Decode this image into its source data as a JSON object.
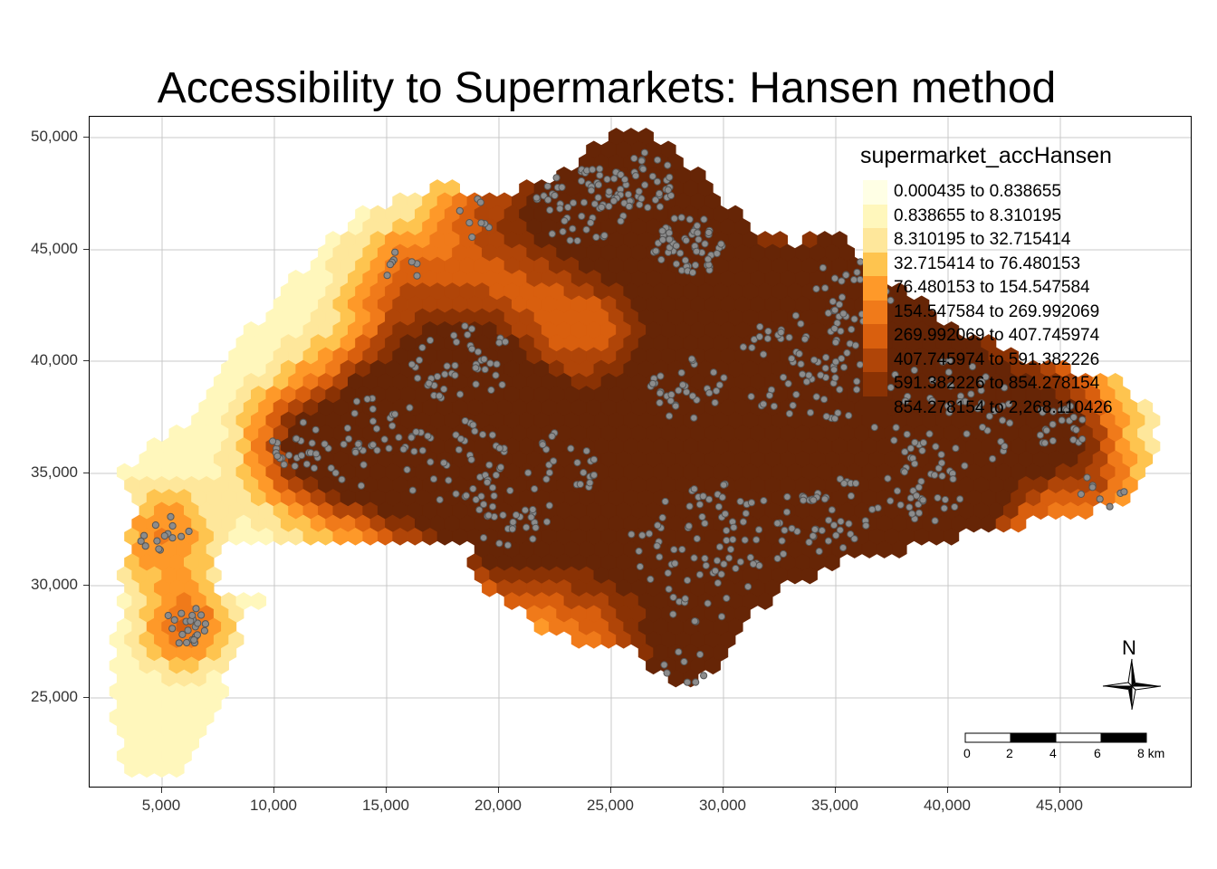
{
  "title": "Accessibility to Supermarkets: Hansen method",
  "legend": {
    "title": "supermarket_accHansen",
    "classes": [
      {
        "label": "0.000435 to 0.838655",
        "color": "#ffffe5"
      },
      {
        "label": "0.838655 to 8.310195",
        "color": "#fff7bc"
      },
      {
        "label": "8.310195 to 32.715414",
        "color": "#fee79b"
      },
      {
        "label": "32.715414 to 76.480153",
        "color": "#fec44f"
      },
      {
        "label": "76.480153 to 154.547584",
        "color": "#fe9929"
      },
      {
        "label": "154.547584 to 269.992069",
        "color": "#f07a1a"
      },
      {
        "label": "269.992069 to 407.745974",
        "color": "#d95f0e"
      },
      {
        "label": "407.745974 to 591.382226",
        "color": "#b04508"
      },
      {
        "label": "591.382226 to 854.278154",
        "color": "#8a3204"
      },
      {
        "label": "854.278154 to 2,268.110426",
        "color": "#662506"
      }
    ]
  },
  "axes": {
    "x_ticks": [
      "5,000",
      "10,000",
      "15,000",
      "20,000",
      "25,000",
      "30,000",
      "35,000",
      "40,000",
      "45,000"
    ],
    "y_ticks": [
      "50,000",
      "45,000",
      "40,000",
      "35,000",
      "30,000",
      "25,000"
    ]
  },
  "north_arrow": {
    "label": "N",
    "icon": "compass-rose-icon"
  },
  "scale_bar": {
    "labels": [
      "0",
      "2",
      "4",
      "6",
      "8 km"
    ]
  },
  "colors": {
    "point_fill": "#8c8c8c",
    "point_stroke": "#555555",
    "grid": "#c8c8c8"
  }
}
